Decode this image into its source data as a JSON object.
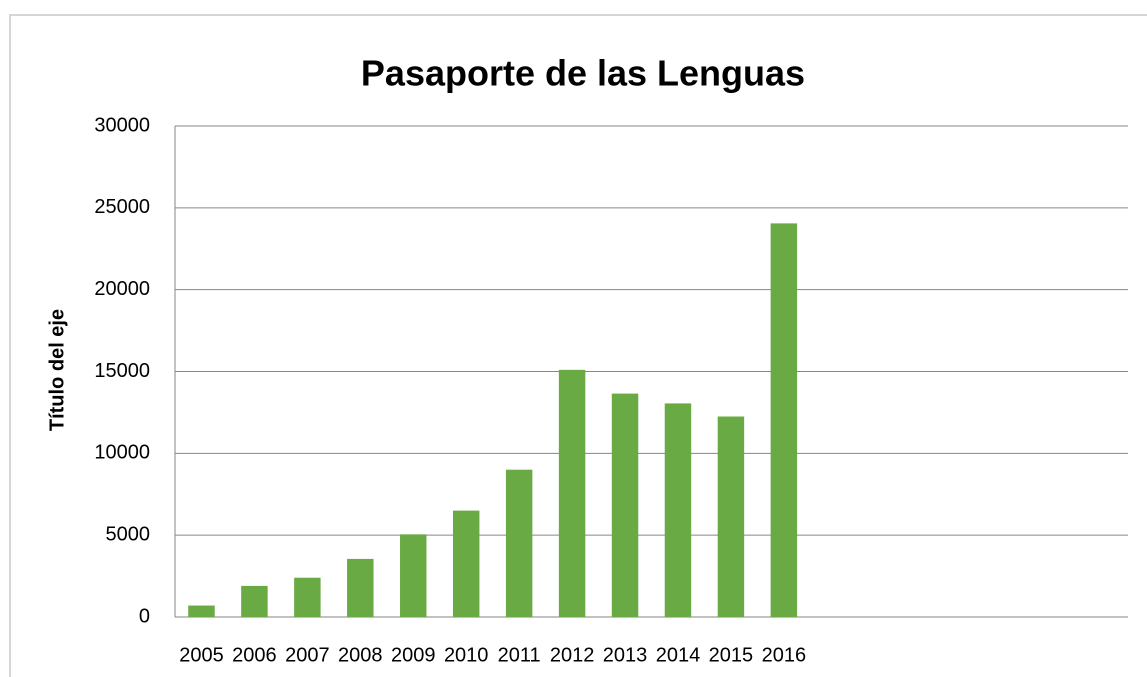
{
  "chart_data": {
    "type": "bar",
    "title": "Pasaporte de las Lenguas",
    "y_label": "Título del eje",
    "categories": [
      "2005",
      "2006",
      "2007",
      "2008",
      "2009",
      "2010",
      "2011",
      "2012",
      "2013",
      "2014",
      "2015",
      "2016",
      null,
      null,
      null,
      null,
      null,
      null
    ],
    "values": [
      700,
      1900,
      2400,
      3550,
      5050,
      6500,
      9000,
      15100,
      13650,
      13050,
      12250,
      24050,
      null,
      null,
      null,
      null,
      null,
      null
    ],
    "color": "#6aaa44",
    "ylim": [
      0,
      30000
    ],
    "yticks": [
      0,
      5000,
      10000,
      15000,
      20000,
      25000,
      30000
    ],
    "grid": true
  }
}
